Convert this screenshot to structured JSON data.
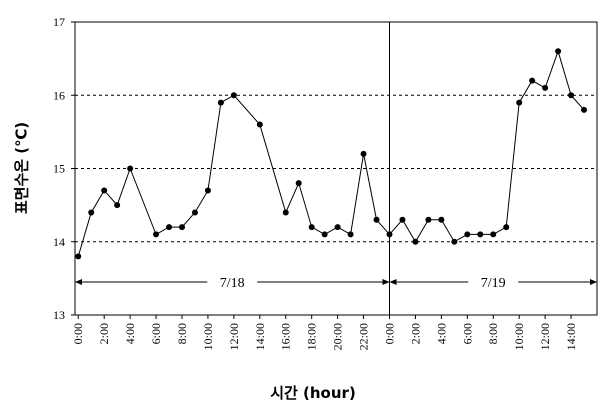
{
  "chart_data": {
    "type": "line",
    "x_label": "시간 (hour)",
    "y_label": "표면수온 (℃)",
    "x": [
      0,
      1,
      2,
      3,
      4,
      6,
      7,
      8,
      9,
      10,
      11,
      12,
      14,
      16,
      17,
      18,
      19,
      20,
      21,
      22,
      23,
      24,
      25,
      26,
      27,
      28,
      29,
      30,
      31,
      32,
      33,
      34,
      35,
      36,
      37,
      38,
      39
    ],
    "series": [
      {
        "color": "#000000",
        "values": [
          13.8,
          14.4,
          14.7,
          14.5,
          15.0,
          14.1,
          14.2,
          14.2,
          14.4,
          14.7,
          15.9,
          16.0,
          15.6,
          14.4,
          14.8,
          14.2,
          14.1,
          14.2,
          14.1,
          15.2,
          14.3,
          14.1,
          14.3,
          14.0,
          14.3,
          14.3,
          14.0,
          14.1,
          14.1,
          14.1,
          14.2,
          15.9,
          16.2,
          16.1,
          16.6,
          16.0,
          15.8
        ]
      }
    ],
    "xlim": [
      -0.25,
      40
    ],
    "ylim": [
      13,
      17
    ],
    "xticks": [
      {
        "value": 0,
        "label": "0:00"
      },
      {
        "value": 2,
        "label": "2:00"
      },
      {
        "value": 4,
        "label": "4:00"
      },
      {
        "value": 6,
        "label": "6:00"
      },
      {
        "value": 8,
        "label": "8:00"
      },
      {
        "value": 10,
        "label": "10:00"
      },
      {
        "value": 12,
        "label": "12:00"
      },
      {
        "value": 14,
        "label": "14:00"
      },
      {
        "value": 16,
        "label": "16:00"
      },
      {
        "value": 18,
        "label": "18:00"
      },
      {
        "value": 20,
        "label": "20:00"
      },
      {
        "value": 22,
        "label": "22:00"
      },
      {
        "value": 24,
        "label": "0:00"
      },
      {
        "value": 26,
        "label": "2:00"
      },
      {
        "value": 28,
        "label": "4:00"
      },
      {
        "value": 30,
        "label": "6:00"
      },
      {
        "value": 32,
        "label": "8:00"
      },
      {
        "value": 34,
        "label": "10:00"
      },
      {
        "value": 36,
        "label": "12:00"
      },
      {
        "value": 38,
        "label": "14:00"
      }
    ],
    "yticks": [
      13,
      14,
      15,
      16,
      17
    ],
    "grid": true,
    "divider_x": 24,
    "annotations": [
      "7/18",
      "7/19"
    ]
  }
}
